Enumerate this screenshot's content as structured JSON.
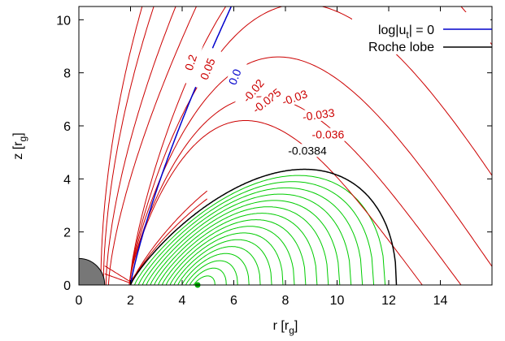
{
  "chart_data": {
    "type": "contour",
    "xlabel": "r [r",
    "xlabel_sub": "g",
    "xlabel_end": "]",
    "ylabel": "z [r",
    "ylabel_sub": "g",
    "ylabel_end": "]",
    "xlim": [
      0,
      16
    ],
    "ylim": [
      0,
      10.5
    ],
    "xticks": [
      0,
      2,
      4,
      6,
      8,
      10,
      12,
      14
    ],
    "yticks": [
      0,
      2,
      4,
      6,
      8,
      10
    ],
    "grid": false,
    "legend": {
      "placement": "top-right",
      "entries": [
        {
          "text_pre": "log|u",
          "text_sub": "t",
          "text_post": "| = 0",
          "color": "#0000cc"
        },
        {
          "text": "Roche lobe",
          "color": "#000000"
        }
      ]
    },
    "colors": {
      "red": "#cc0000",
      "blue": "#0000cc",
      "green": "#00cc00",
      "black": "#000000",
      "bh": "#777777",
      "center_dot": "#00aa00"
    },
    "black_hole": {
      "radius": 1.0
    },
    "disk_center": {
      "r": 4.6,
      "z": 0
    },
    "cusp": {
      "r": 2.0,
      "z": 0
    },
    "roche_lobe_outer_edge": 12.3,
    "roche_lobe_max_height": 4.85,
    "contour_labels": [
      {
        "text": "0.2",
        "r": 4.45,
        "z": 8.35,
        "angle": -72,
        "color": "#cc0000"
      },
      {
        "text": "0.05",
        "r": 5.1,
        "z": 8.1,
        "angle": -68,
        "color": "#cc0000"
      },
      {
        "text": "0.0",
        "r": 6.15,
        "z": 7.8,
        "angle": -68,
        "color": "#0000cc"
      },
      {
        "text": "-0.02",
        "r": 6.85,
        "z": 7.25,
        "angle": -50,
        "color": "#cc0000"
      },
      {
        "text": "-0.025",
        "r": 7.35,
        "z": 6.85,
        "angle": -38,
        "color": "#cc0000"
      },
      {
        "text": "-0.03",
        "r": 8.4,
        "z": 6.95,
        "angle": -20,
        "color": "#cc0000"
      },
      {
        "text": "-0.033",
        "r": 9.3,
        "z": 6.3,
        "angle": -8,
        "color": "#cc0000"
      },
      {
        "text": "-0.036",
        "r": 9.65,
        "z": 5.55,
        "angle": 0,
        "color": "#cc0000"
      },
      {
        "text": "-0.0384",
        "r": 8.85,
        "z": 4.95,
        "angle": 0,
        "color": "#000000"
      }
    ],
    "series": [
      {
        "name": "log|u_t| = 0",
        "color": "#0000cc",
        "style": "line"
      },
      {
        "name": "Roche lobe",
        "color": "#000000",
        "style": "line"
      }
    ]
  }
}
